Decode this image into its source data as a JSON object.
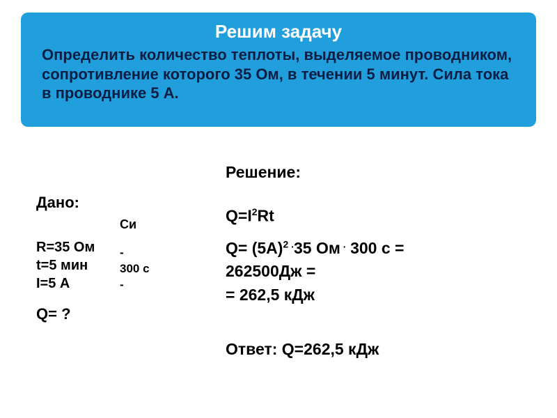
{
  "header": {
    "title": "Решим задачу",
    "problem": "Определить количество теплоты, выделяемое проводником, сопротивление которого 35 Ом, в течении 5 минут. Сила тока в проводнике 5 А.",
    "bg_color": "#219edc",
    "title_color": "#ffffff",
    "problem_color": "#0b1f45",
    "title_fontsize": 26,
    "problem_fontsize": 22
  },
  "given": {
    "label": "Дано:",
    "items": [
      "R=35 Ом",
      "t=5 мин",
      "I=5 А"
    ],
    "fontsize": 20
  },
  "si": {
    "label": "Си",
    "items": [
      "-",
      "300 с",
      "-"
    ],
    "fontsize": 17
  },
  "find": {
    "label": "Q= ?"
  },
  "solution": {
    "label": "Решение:",
    "formula_html": "Q=I<sup>2</sup>Rt",
    "calc_html": "Q= (5A)<sup>2 .</sup>35 Ом<sup> .</sup> 300 с =\n262500Дж =\n= 262,5 кДж",
    "answer": "Ответ: Q=262,5 кДж",
    "fontsize": 23
  },
  "style": {
    "body_bg": "#ffffff",
    "text_color": "#000000",
    "font_family": "Arial",
    "header_border_radius": 10
  }
}
